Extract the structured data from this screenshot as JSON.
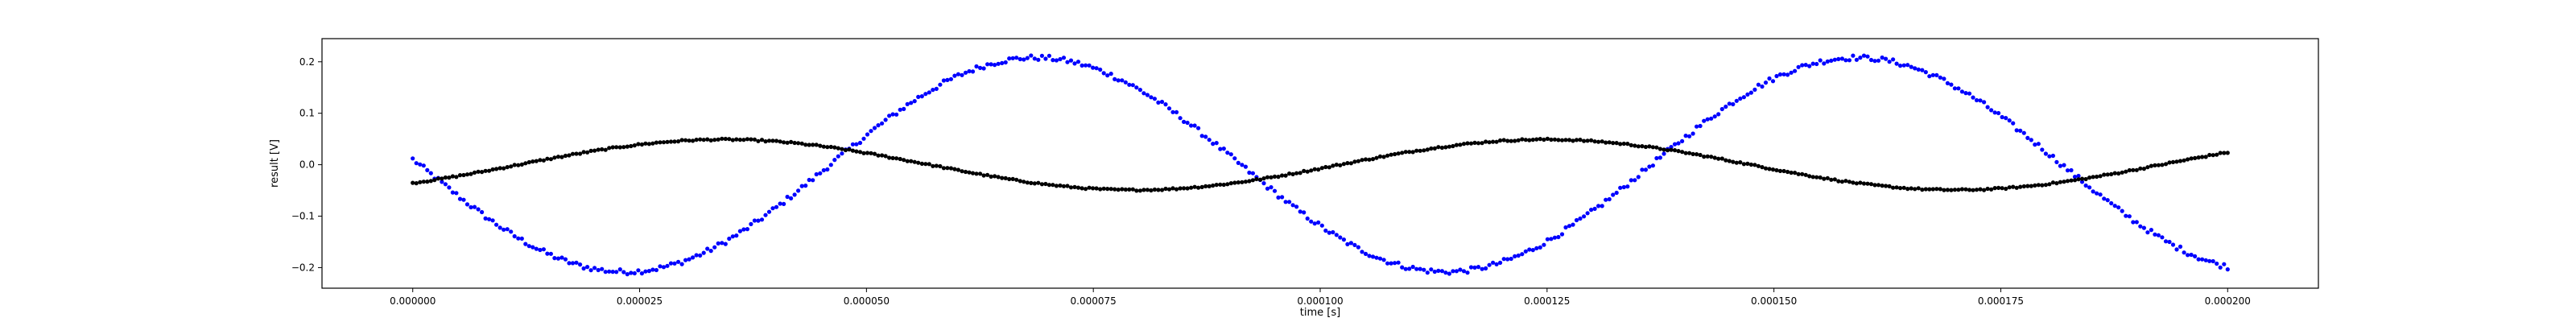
{
  "chart_data": {
    "type": "scatter",
    "title": "",
    "xlabel": "time [s]",
    "ylabel": "result [V]",
    "xlim": [
      -1e-05,
      0.00021
    ],
    "ylim": [
      -0.24,
      0.245
    ],
    "grid": false,
    "xticks": [
      0.0,
      2.5e-05,
      5e-05,
      7.5e-05,
      0.0001,
      0.000125,
      0.00015,
      0.000175,
      0.0002
    ],
    "xtick_labels": [
      "0.000000",
      "0.000025",
      "0.000050",
      "0.000075",
      "0.000100",
      "0.000125",
      "0.000150",
      "0.000175",
      "0.000200"
    ],
    "yticks": [
      -0.2,
      -0.1,
      0.0,
      0.1,
      0.2
    ],
    "ytick_labels": [
      "−0.2",
      "−0.1",
      "0.0",
      "0.1",
      "0.2"
    ],
    "series": [
      {
        "color": "#0000ff",
        "x_range": [
          0.0,
          0.0002
        ],
        "model": "sine",
        "amplitude": 0.208,
        "frequency_hz": 11050,
        "phase_rad": 3.09,
        "noise_v": 0.005,
        "points": 500
      },
      {
        "color": "#000000",
        "x_range": [
          0.0,
          0.0002
        ],
        "model": "sine",
        "amplitude": 0.049,
        "frequency_hz": 11050,
        "phase_rad": -0.81,
        "noise_v": 0.0015,
        "points": 500
      }
    ]
  }
}
